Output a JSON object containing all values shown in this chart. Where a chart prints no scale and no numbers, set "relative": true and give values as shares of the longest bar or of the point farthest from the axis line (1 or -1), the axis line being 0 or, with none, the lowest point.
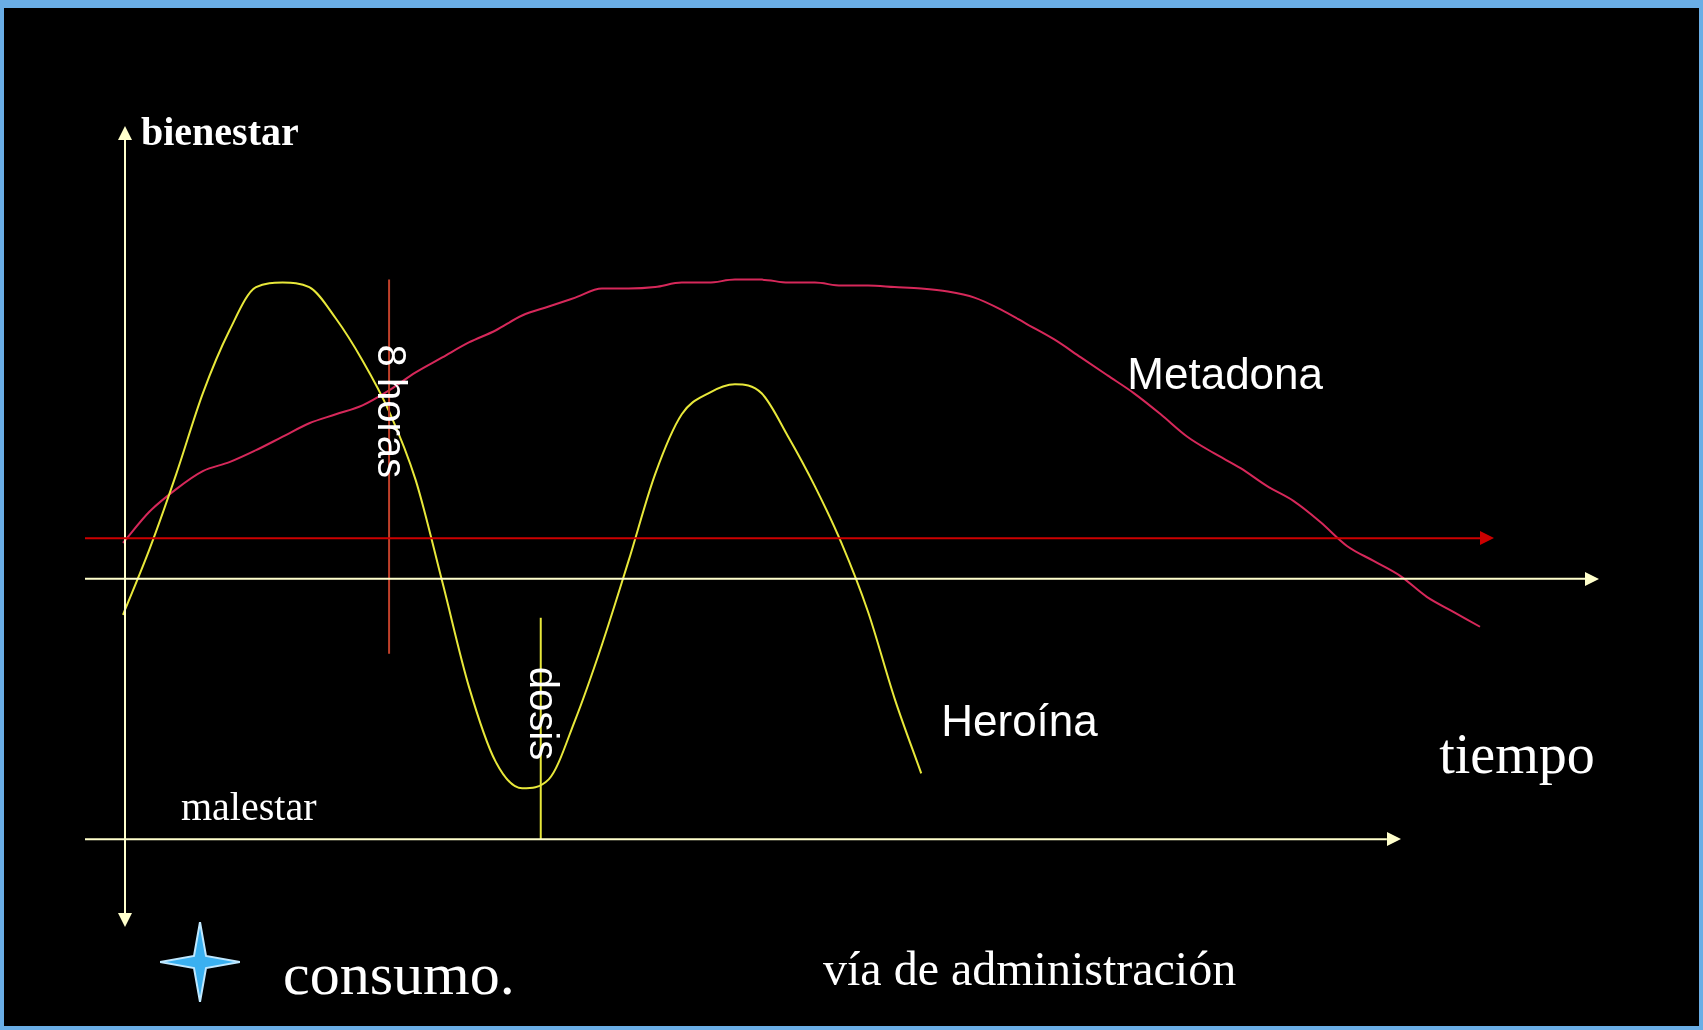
{
  "chart_data": {
    "type": "line",
    "relative": true,
    "ylabel": "bienestar",
    "xlabel": "tiempo",
    "categories": [
      null,
      null,
      null,
      null,
      null,
      null,
      null,
      null,
      null,
      null,
      null,
      null,
      null,
      null,
      null,
      null,
      null,
      null,
      null,
      null,
      null,
      null,
      null,
      null,
      null,
      null,
      null,
      null,
      null,
      null,
      null,
      null,
      null,
      null,
      null,
      null,
      null,
      null,
      null,
      null,
      null,
      null,
      null,
      null,
      null,
      null,
      null,
      null,
      null,
      null,
      null,
      null
    ],
    "series": [
      {
        "name": "Heroína",
        "color": "#e8e83a",
        "values": [
          -0.12,
          0.1,
          0.35,
          0.62,
          0.83,
          0.975,
          0.99,
          0.975,
          0.87,
          0.73,
          0.56,
          0.33,
          -0.01,
          -0.36,
          -0.61,
          -0.7,
          -0.67,
          -0.47,
          -0.22,
          0.06,
          0.35,
          0.55,
          0.62,
          0.65,
          0.62,
          0.475,
          0.31,
          0.12,
          -0.11,
          -0.4,
          -0.65,
          null,
          null,
          null,
          null,
          null,
          null,
          null,
          null,
          null,
          null,
          null,
          null,
          null,
          null,
          null,
          null,
          null,
          null,
          null,
          null,
          null
        ]
      },
      {
        "name": "Metadona",
        "color": "#d6285a",
        "values": [
          0.12,
          0.225,
          0.3,
          0.36,
          0.39,
          0.43,
          0.475,
          0.52,
          0.55,
          0.58,
          0.63,
          0.69,
          0.74,
          0.79,
          0.83,
          0.88,
          0.91,
          0.94,
          0.97,
          0.97,
          0.975,
          0.99,
          0.99,
          1.0,
          1.0,
          0.99,
          0.99,
          0.98,
          0.98,
          0.975,
          0.97,
          0.96,
          0.94,
          0.9,
          0.85,
          0.8,
          0.74,
          0.68,
          0.62,
          0.55,
          0.475,
          0.42,
          0.37,
          0.31,
          0.26,
          0.19,
          0.11,
          0.06,
          0.01,
          -0.06,
          -0.11,
          -0.16
        ]
      }
    ],
    "ref_lines": [
      {
        "axis": "y",
        "value": 0,
        "color": "#ffffcc"
      },
      {
        "axis": "y",
        "value": 0.136,
        "color": "#cc0000"
      },
      {
        "axis": "y",
        "value": -0.87,
        "label": "malestar",
        "color": "#ffffcc"
      }
    ],
    "annotations": [
      "8 horas",
      "dosis",
      "consumo.",
      "vía de administración"
    ],
    "line_style": "solid"
  }
}
